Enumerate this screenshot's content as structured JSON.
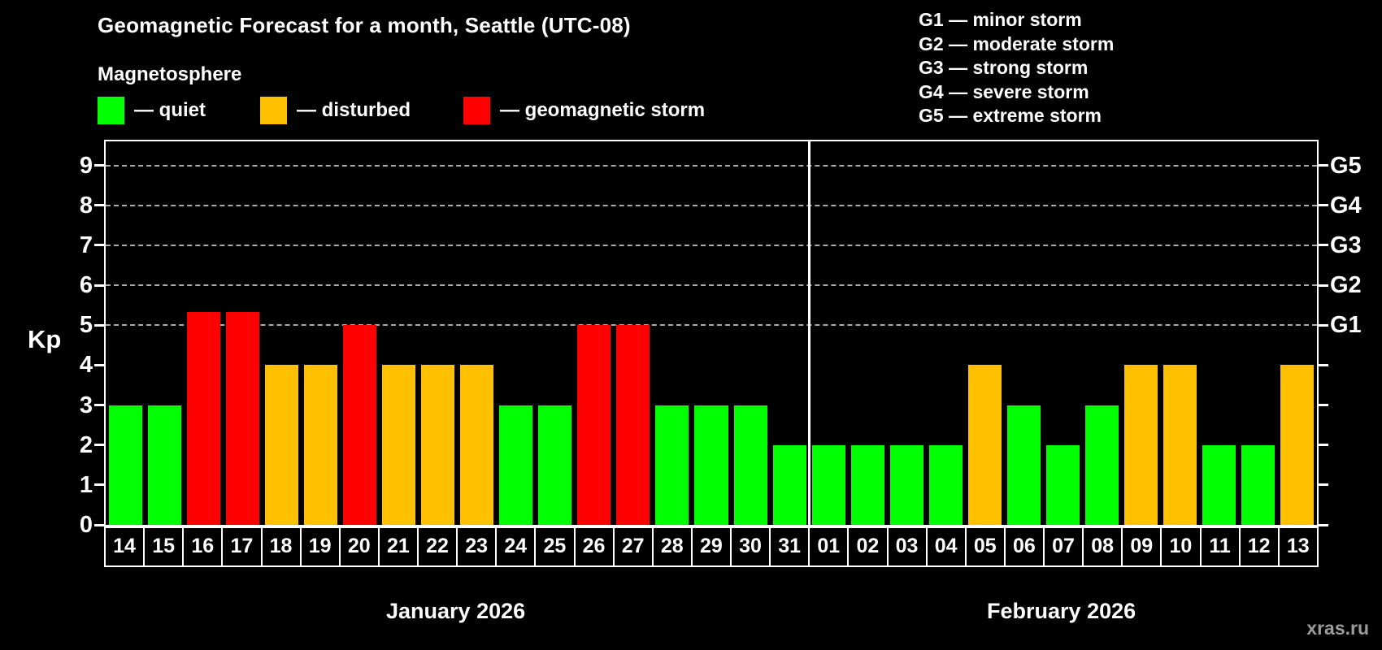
{
  "title": "Geomagnetic Forecast for a month, Seattle (UTC-08)",
  "legend": {
    "title": "Magnetosphere",
    "items": [
      {
        "name": "quiet",
        "label": "— quiet",
        "color": "#00ff00"
      },
      {
        "name": "disturbed",
        "label": "— disturbed",
        "color": "#ffc000"
      },
      {
        "name": "storm",
        "label": "— geomagnetic storm",
        "color": "#ff0000"
      }
    ]
  },
  "g_legend": [
    "G1 — minor storm",
    "G2 — moderate storm",
    "G3 — strong storm",
    "G4 — severe storm",
    "G5 — extreme storm"
  ],
  "axes": {
    "y_label": "Kp",
    "y_ticks": [
      0,
      1,
      2,
      3,
      4,
      5,
      6,
      7,
      8,
      9
    ],
    "y_max": 9.6,
    "right_scale": [
      {
        "kp": 5,
        "label": "G1"
      },
      {
        "kp": 6,
        "label": "G2"
      },
      {
        "kp": 7,
        "label": "G3"
      },
      {
        "kp": 8,
        "label": "G4"
      },
      {
        "kp": 9,
        "label": "G5"
      }
    ]
  },
  "months": [
    {
      "label": "January 2026",
      "days": 18
    },
    {
      "label": "February 2026",
      "days": 13
    }
  ],
  "watermark": "xras.ru",
  "chart_data": {
    "type": "bar",
    "title": "Geomagnetic Forecast for a month, Seattle (UTC-08)",
    "xlabel": "",
    "ylabel": "Kp",
    "ylim": [
      0,
      9.6
    ],
    "gridlines_at_kp": [
      5,
      6,
      7,
      8,
      9
    ],
    "grid_style": "dashed",
    "legend_position": "top",
    "categories": [
      "14",
      "15",
      "16",
      "17",
      "18",
      "19",
      "20",
      "21",
      "22",
      "23",
      "24",
      "25",
      "26",
      "27",
      "28",
      "29",
      "30",
      "31",
      "01",
      "02",
      "03",
      "04",
      "05",
      "06",
      "07",
      "08",
      "09",
      "10",
      "11",
      "12",
      "13"
    ],
    "values": [
      3,
      3,
      5.33,
      5.33,
      4,
      4,
      5,
      4,
      4,
      4,
      3,
      3,
      5,
      5,
      3,
      3,
      3,
      2,
      2,
      2,
      2,
      2,
      4,
      3,
      2,
      3,
      4,
      4,
      2,
      2,
      4
    ],
    "status": [
      "quiet",
      "quiet",
      "storm",
      "storm",
      "disturbed",
      "disturbed",
      "storm",
      "disturbed",
      "disturbed",
      "disturbed",
      "quiet",
      "quiet",
      "storm",
      "storm",
      "quiet",
      "quiet",
      "quiet",
      "quiet",
      "quiet",
      "quiet",
      "quiet",
      "quiet",
      "disturbed",
      "quiet",
      "quiet",
      "quiet",
      "disturbed",
      "disturbed",
      "quiet",
      "quiet",
      "disturbed"
    ],
    "status_colors": {
      "quiet": "#00ff00",
      "disturbed": "#ffc000",
      "storm": "#ff0000"
    }
  }
}
